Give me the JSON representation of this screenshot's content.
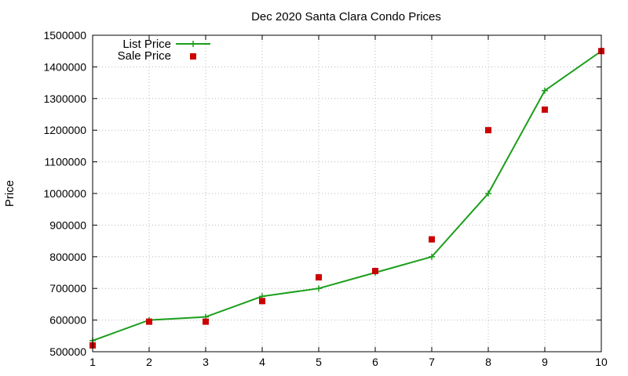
{
  "chart_data": {
    "type": "line",
    "title": "Dec 2020 Santa Clara Condo Prices",
    "xlabel": "",
    "ylabel": "Price",
    "x": [
      1,
      2,
      3,
      4,
      5,
      6,
      7,
      8,
      9,
      10
    ],
    "xlim": [
      1,
      10
    ],
    "ylim": [
      500000,
      1500000
    ],
    "xticks": [
      1,
      2,
      3,
      4,
      5,
      6,
      7,
      8,
      9,
      10
    ],
    "yticks": [
      500000,
      600000,
      700000,
      800000,
      900000,
      1000000,
      1100000,
      1200000,
      1300000,
      1400000,
      1500000
    ],
    "grid": true,
    "legend_position": "top-left",
    "series": [
      {
        "name": "List Price",
        "style": "line-with-plus-markers",
        "color": "#1a9e1a",
        "values": [
          535000,
          600000,
          610000,
          675000,
          700000,
          750000,
          800000,
          1000000,
          1325000,
          1450000
        ]
      },
      {
        "name": "Sale Price",
        "style": "square-markers",
        "color": "#cc0000",
        "values": [
          520000,
          595000,
          595000,
          660000,
          735000,
          755000,
          855000,
          1200000,
          1265000,
          1450000
        ]
      }
    ]
  }
}
